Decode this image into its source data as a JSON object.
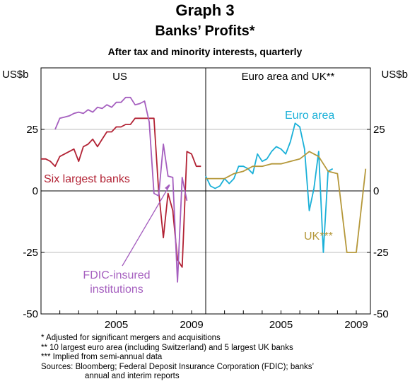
{
  "title": "Graph 3",
  "subtitle": "Banks’ Profits*",
  "subtitle2": "After tax and minority interests, quarterly",
  "unit_left": "US$b",
  "unit_right": "US$b",
  "colors": {
    "six_largest": "#b22234",
    "fdic": "#a55fbf",
    "euro": "#1ab0d8",
    "uk": "#b5983a"
  },
  "chart_data": [
    {
      "type": "line",
      "panel": "US",
      "ylim": [
        -50,
        50
      ],
      "yticks": [
        -50,
        -25,
        0,
        25
      ],
      "xticks": [
        {
          "x": 2005,
          "label": "2005"
        },
        {
          "x": 2009,
          "label": "2009"
        }
      ],
      "xlim": [
        2001,
        2009.75
      ],
      "series": [
        {
          "name": "Six largest banks",
          "x": [
            2001.0,
            2001.25,
            2001.5,
            2001.75,
            2002.0,
            2002.25,
            2002.5,
            2002.75,
            2003.0,
            2003.25,
            2003.5,
            2003.75,
            2004.0,
            2004.25,
            2004.5,
            2004.75,
            2005.0,
            2005.25,
            2005.5,
            2005.75,
            2006.0,
            2006.25,
            2006.5,
            2006.75,
            2007.0,
            2007.25,
            2007.5,
            2007.75,
            2008.0,
            2008.25,
            2008.5,
            2008.75,
            2009.0,
            2009.25,
            2009.5
          ],
          "values": [
            13,
            13,
            12,
            10,
            14,
            15,
            16,
            17,
            12,
            18,
            19,
            21,
            18,
            21,
            24,
            24,
            26,
            26,
            27,
            27,
            29.5,
            29.5,
            29.5,
            29.5,
            29.5,
            0,
            -19,
            -1,
            -8,
            -28,
            -31,
            16,
            15,
            10,
            10
          ]
        },
        {
          "name": "FDIC-insured institutions",
          "x": [
            2001.75,
            2002.0,
            2002.25,
            2002.5,
            2002.75,
            2003.0,
            2003.25,
            2003.5,
            2003.75,
            2004.0,
            2004.25,
            2004.5,
            2004.75,
            2005.0,
            2005.25,
            2005.5,
            2005.75,
            2006.0,
            2006.25,
            2006.5,
            2006.75,
            2007.0,
            2007.25,
            2007.5,
            2007.75,
            2008.0,
            2008.25,
            2008.5,
            2008.75,
            2009.0,
            2009.25
          ],
          "values": [
            25,
            29.5,
            30,
            30.5,
            31.5,
            32,
            31.5,
            33,
            32,
            34,
            33.5,
            35,
            34,
            36,
            36,
            38,
            38,
            35,
            35.5,
            36.5,
            28,
            -1,
            -2,
            19,
            6,
            5.5,
            -37,
            5.5,
            -4,
            null,
            null
          ]
        }
      ]
    },
    {
      "type": "line",
      "panel": "Euro area and UK**",
      "ylim": [
        -50,
        50
      ],
      "yticks": [
        -50,
        -25,
        0,
        25
      ],
      "xticks": [
        {
          "x": 2005,
          "label": "2005"
        },
        {
          "x": 2009,
          "label": "2009"
        }
      ],
      "xlim": [
        2001,
        2009.75
      ],
      "series": [
        {
          "name": "Euro area",
          "x": [
            2001.0,
            2001.25,
            2001.5,
            2001.75,
            2002.0,
            2002.25,
            2002.5,
            2002.75,
            2003.0,
            2003.25,
            2003.5,
            2003.75,
            2004.0,
            2004.25,
            2004.5,
            2004.75,
            2005.0,
            2005.25,
            2005.5,
            2005.75,
            2006.0,
            2006.25,
            2006.5,
            2006.75,
            2007.0,
            2007.25,
            2007.5,
            2007.75,
            2008.0,
            2008.25,
            2008.5,
            2008.75,
            2009.0,
            2009.25,
            2009.5
          ],
          "values": [
            6,
            2,
            1,
            2,
            5,
            3,
            5,
            10,
            10,
            9,
            7,
            15,
            12,
            13,
            16,
            18,
            17,
            15,
            20,
            27.5,
            26,
            17,
            -8,
            1,
            16,
            -25,
            8,
            9,
            null,
            null,
            null,
            null,
            null,
            null,
            null
          ]
        },
        {
          "name": "UK***",
          "x": [
            2001.0,
            2001.5,
            2002.0,
            2002.5,
            2003.0,
            2003.5,
            2004.0,
            2004.5,
            2005.0,
            2005.5,
            2006.0,
            2006.5,
            2007.0,
            2007.5,
            2008.0,
            2008.5,
            2009.0,
            2009.5
          ],
          "values": [
            5,
            5,
            5,
            7,
            8,
            10,
            10,
            11,
            11,
            12,
            13,
            16,
            14,
            8,
            7,
            -25,
            -25,
            9
          ]
        }
      ]
    }
  ],
  "labels": {
    "panel_left": "US",
    "panel_right": "Euro area and UK**",
    "six_largest": "Six largest banks",
    "fdic_line1": "FDIC-insured",
    "fdic_line2": "institutions",
    "euro": "Euro area",
    "uk": "UK***"
  },
  "notes": [
    "*     Adjusted for significant mergers and acquisitions",
    "**   10 largest euro area (including Switzerland) and 5 largest UK banks",
    "*** Implied from semi-annual data",
    "Sources: Bloomberg; Federal Deposit Insurance Corporation (FDIC); banks’",
    "annual and interim reports"
  ]
}
